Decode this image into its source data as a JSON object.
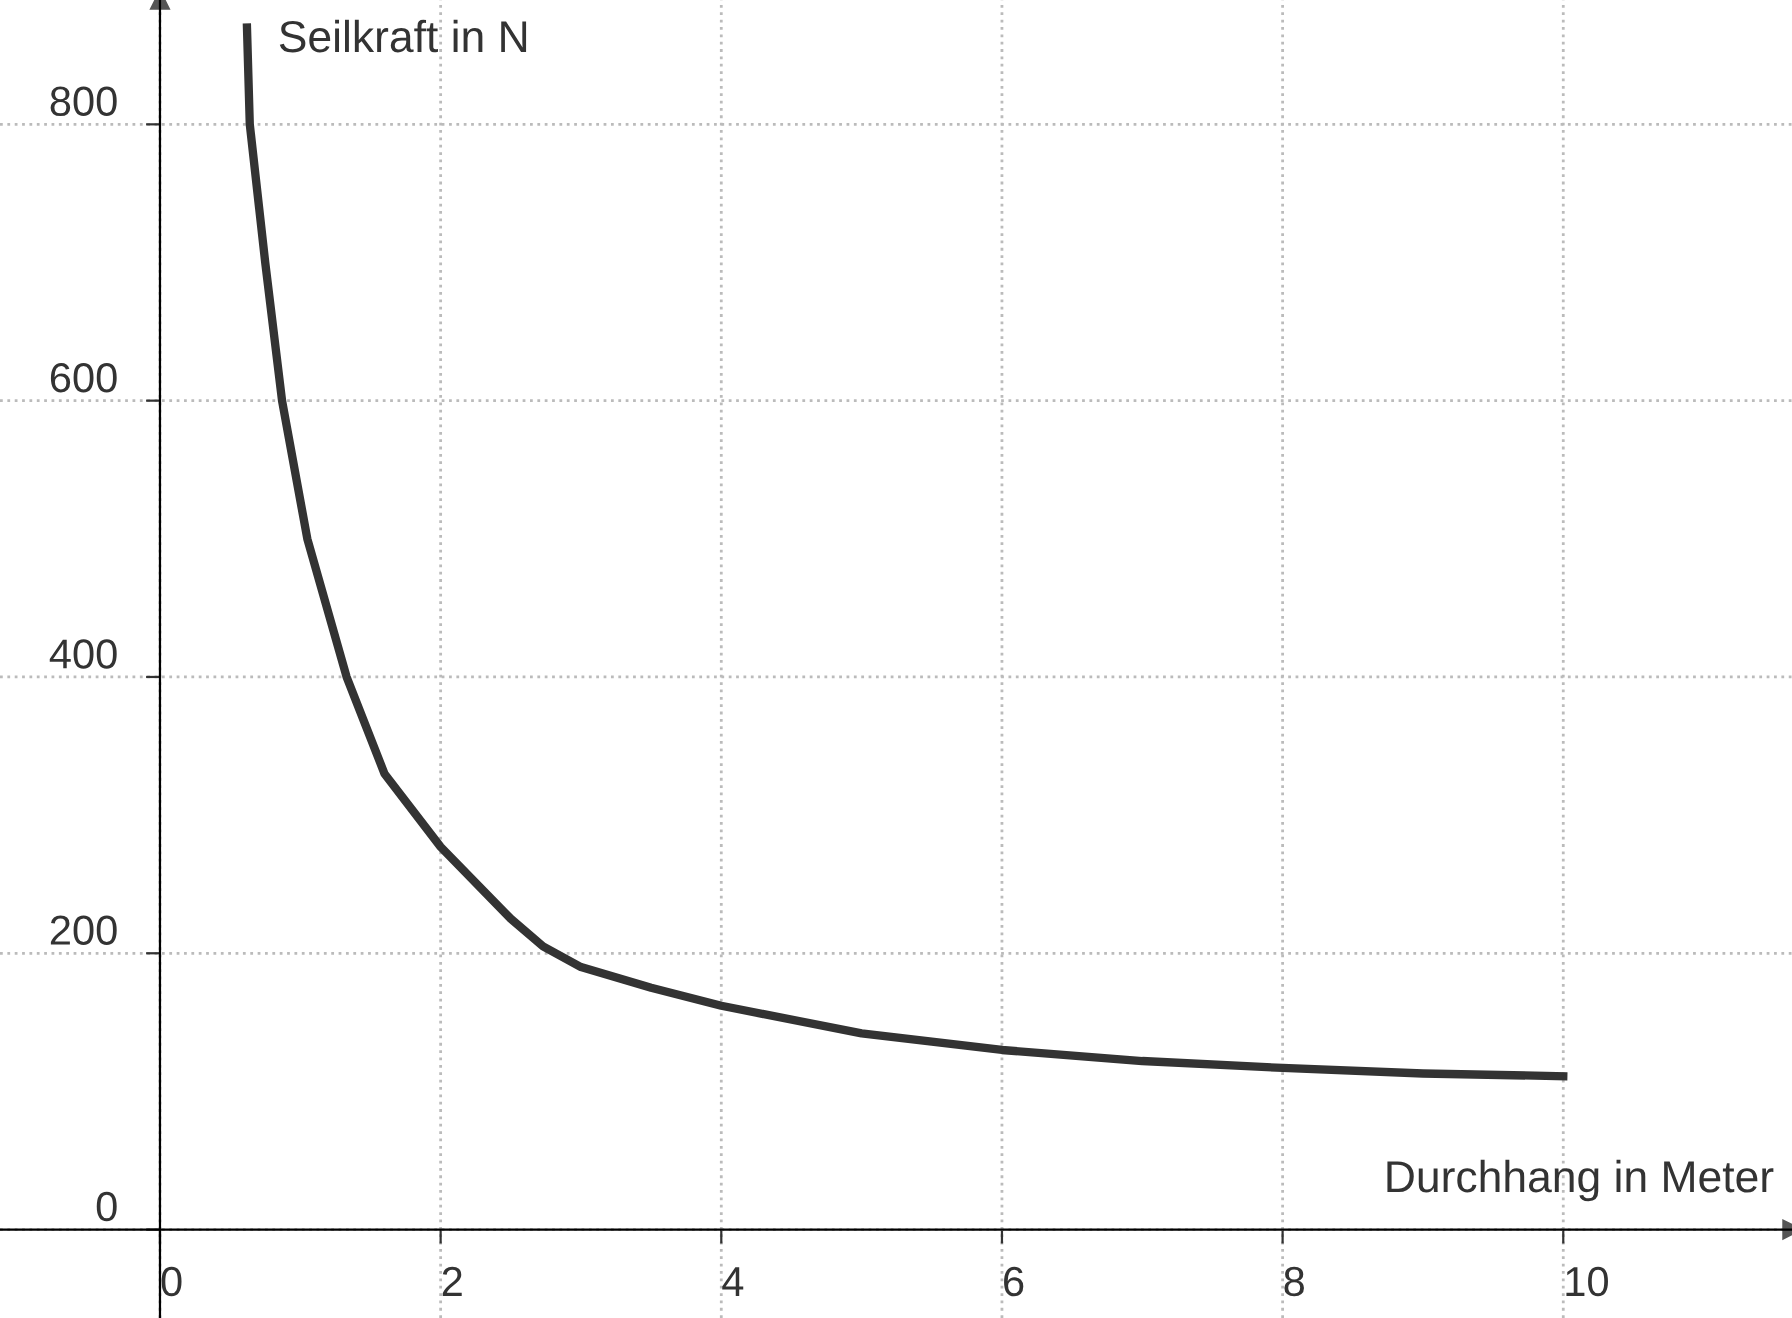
{
  "chart_data": {
    "type": "line",
    "xlabel": "Durchhang in Meter",
    "ylabel": "Seilkraft in N",
    "series": [
      {
        "color": "#333333",
        "x": [
          0.62,
          0.64,
          0.75,
          0.87,
          1.05,
          1.33,
          1.6,
          2,
          2.5,
          2.73,
          3,
          3.5,
          4,
          5,
          6,
          7,
          8,
          9,
          10
        ],
        "values": [
          870,
          800,
          700,
          600,
          500,
          400,
          330,
          277,
          225,
          205,
          190,
          175,
          162,
          142,
          130,
          122,
          117,
          113,
          111
        ]
      }
    ],
    "xlim": [
      -1.14,
      11.63
    ],
    "ylim": [
      -64,
      890
    ],
    "xticks": [
      0,
      2,
      4,
      6,
      8,
      10
    ],
    "yticks": [
      0,
      200,
      400,
      600,
      800
    ],
    "grid": true,
    "legend": false,
    "marker": "none",
    "line_style": "solid"
  }
}
